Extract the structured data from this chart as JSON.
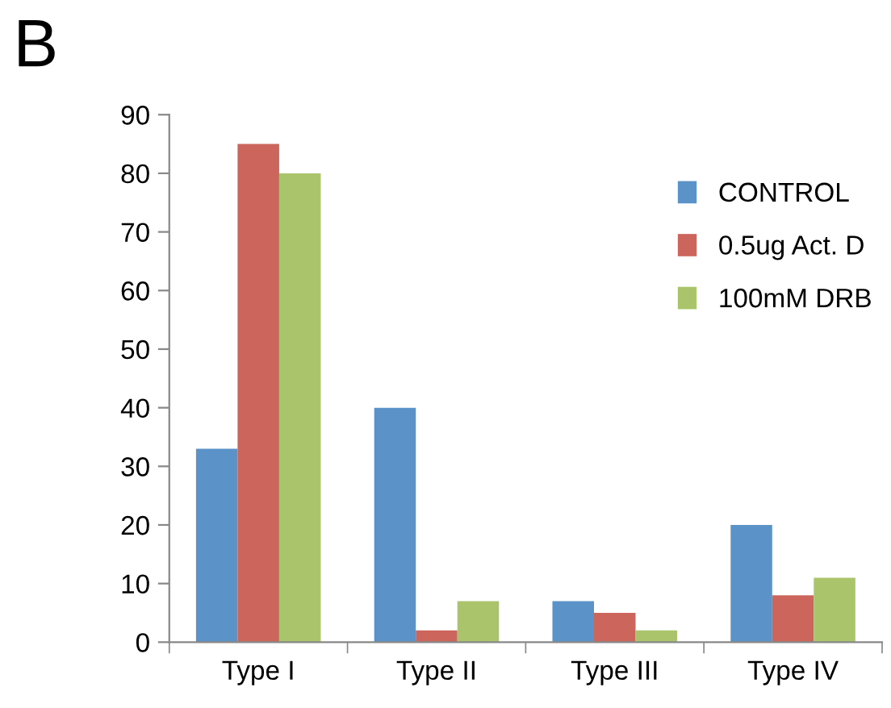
{
  "chart_data": {
    "type": "bar",
    "annotations": [
      "B"
    ],
    "categories": [
      "Type I",
      "Type II",
      "Type III",
      "Type IV"
    ],
    "series": [
      {
        "name": "CONTROL",
        "color": "#5b93c9",
        "values": [
          33,
          40,
          7,
          20
        ]
      },
      {
        "name": "0.5ug Act. D",
        "color": "#cc655b",
        "values": [
          85,
          2,
          5,
          8
        ]
      },
      {
        "name": "100mM DRB",
        "color": "#a9c46b",
        "values": [
          80,
          7,
          2,
          11
        ]
      }
    ],
    "ylim": [
      0,
      90
    ],
    "yticks": [
      0,
      10,
      20,
      30,
      40,
      50,
      60,
      70,
      80,
      90
    ],
    "grid": false,
    "legend": "top right"
  }
}
